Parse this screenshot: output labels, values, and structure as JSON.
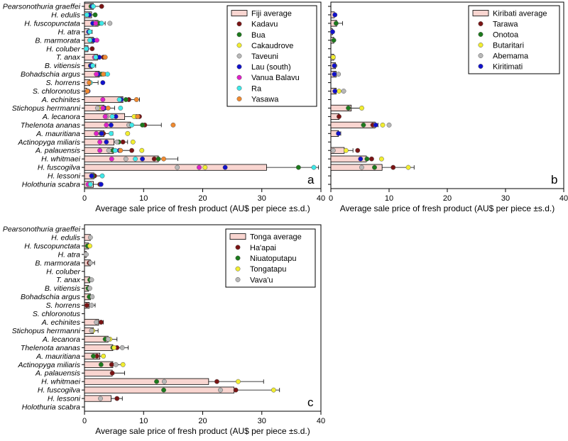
{
  "chart_data": [
    {
      "type": "bar",
      "orientation": "horizontal",
      "panel_label": "a",
      "categories": [
        "Pearsonothuria graeffei",
        "H. edulis",
        "H. fuscopunctata",
        "H. atra",
        "B. marmorata",
        "H. coluber",
        "T. anax",
        "B. vitiensis",
        "Bohadschia argus",
        "S. horrens",
        "S. chloronotus",
        "A. echinites",
        "Stichopus herrmanni",
        "A. lecanora",
        "Thelenota ananas",
        "A. mauritiana",
        "Actinopyga miliaris",
        "A. palauensis",
        "H. whitmaei",
        "H. fuscogilva",
        "H. lessoni",
        "Holothuria scabra"
      ],
      "xlabel": "Average sale price of fresh product (AU$ per piece ±s.d.)",
      "xlim": [
        0,
        40
      ],
      "xticks": [
        "0",
        "10",
        "20",
        "30",
        "40"
      ],
      "legend_position": "top-right",
      "average": {
        "name": "Fiji average",
        "color": "#f9d5d0",
        "values": [
          1.5,
          1.2,
          2.3,
          0.8,
          1.5,
          0.6,
          2.2,
          1.3,
          2.5,
          0.9,
          0.4,
          6.5,
          3.3,
          6.8,
          7.8,
          3.3,
          5.0,
          4.9,
          12.5,
          30.8,
          1.6,
          1.5
        ],
        "sd": [
          1.3,
          0.8,
          1.2,
          0.5,
          0.6,
          0,
          1.4,
          0.6,
          1.0,
          1.4,
          0,
          2.8,
          1.8,
          2.4,
          5.2,
          1.5,
          2.3,
          2.9,
          3.3,
          8.8,
          1.6,
          1.1
        ]
      },
      "series": [
        {
          "name": "Kadavu",
          "color": "#7a1414",
          "values": [
            2.9,
            null,
            2.0,
            null,
            1.4,
            1.3,
            3.2,
            1.3,
            2.6,
            null,
            0.5,
            7.5,
            3.4,
            9.3,
            10.2,
            3.2,
            6.5,
            8.0,
            11.8,
            null,
            1.7,
            2.6
          ]
        },
        {
          "name": "Bua",
          "color": "#1c7a1c",
          "values": [
            1.1,
            1.8,
            2.5,
            null,
            1.2,
            null,
            2.2,
            1.0,
            2.9,
            null,
            null,
            7.0,
            3.2,
            8.8,
            9.8,
            2.8,
            5.8,
            4.8,
            12.5,
            36.2,
            1.4,
            null
          ]
        },
        {
          "name": "Cakaudrove",
          "color": "#f2ee30",
          "values": [
            null,
            null,
            null,
            null,
            null,
            null,
            null,
            null,
            null,
            null,
            null,
            null,
            2.5,
            8.4,
            null,
            7.3,
            8.2,
            9.7,
            null,
            20.4,
            null,
            null
          ]
        },
        {
          "name": "Taveuni",
          "color": "#b8b8b8",
          "values": [
            null,
            null,
            4.3,
            null,
            null,
            null,
            null,
            null,
            null,
            null,
            null,
            null,
            2.2,
            3.8,
            7.5,
            null,
            5.5,
            4.1,
            7.0,
            15.7,
            null,
            null
          ]
        },
        {
          "name": "Lau (south)",
          "color": "#1111cc",
          "values": [
            1.3,
            0.8,
            1.4,
            0.7,
            1.6,
            0.4,
            2.5,
            1.1,
            2.3,
            3.1,
            0.6,
            6.2,
            3.4,
            5.3,
            4.5,
            2.9,
            3.7,
            5.9,
            9.8,
            23.8,
            1.2,
            2.8
          ]
        },
        {
          "name": "Vanua Balavu",
          "color": "#e020c8",
          "values": [
            null,
            null,
            1.9,
            null,
            2.1,
            null,
            1.7,
            null,
            2.0,
            null,
            null,
            3.1,
            3.1,
            3.5,
            3.7,
            2.0,
            2.6,
            2.6,
            4.6,
            19.4,
            null,
            0.6
          ]
        },
        {
          "name": "Ra",
          "color": "#3ee8e8",
          "values": [
            1.5,
            0.4,
            2.9,
            0.9,
            0.9,
            0.3,
            1.9,
            1.4,
            3.9,
            1.0,
            null,
            5.9,
            6.1,
            4.7,
            8.0,
            4.5,
            null,
            5.2,
            8.6,
            38.8,
            3.0,
            1.0
          ]
        },
        {
          "name": "Yasawa",
          "color": "#f08a30",
          "values": [
            null,
            null,
            null,
            null,
            null,
            null,
            3.5,
            null,
            3.2,
            0.8,
            0.5,
            8.8,
            4.0,
            9.0,
            15.0,
            null,
            null,
            6.1,
            13.4,
            null,
            null,
            null
          ]
        }
      ]
    },
    {
      "type": "bar",
      "orientation": "horizontal",
      "panel_label": "b",
      "categories": [
        "Pearsonothuria graeffei",
        "H. edulis",
        "H. fuscopunctata",
        "H. atra",
        "B. marmorata",
        "H. coluber",
        "T. anax",
        "B. vitiensis",
        "Bohadschia argus",
        "S. horrens",
        "S. chloronotus",
        "A. echinites",
        "Stichopus herrmanni",
        "A. lecanora",
        "Thelenota ananas",
        "A. mauritiana",
        "Actinopyga miliaris",
        "A. palauensis",
        "H. whitmaei",
        "H. fuscogilva",
        "H. lessoni",
        "Holothuria scabra"
      ],
      "xlabel": "Average sale price of fresh product (AU$ per piece ±s.d.)",
      "xlim": [
        0,
        40
      ],
      "xticks": [
        "0",
        "10",
        "20",
        "30",
        "40"
      ],
      "legend_position": "top-right",
      "average": {
        "name": "Kiribati average",
        "color": "#f9d5d0",
        "values": [
          null,
          0.6,
          1.0,
          0.3,
          0.5,
          null,
          0.5,
          0.8,
          0.9,
          null,
          0.9,
          null,
          3.5,
          1.4,
          7.6,
          1.3,
          null,
          2.3,
          6.1,
          8.8,
          null,
          null
        ],
        "sd": [
          null,
          0.2,
          1.0,
          0,
          0,
          null,
          0.2,
          0,
          0.4,
          null,
          0,
          null,
          2.0,
          0,
          0.5,
          0.4,
          null,
          1.5,
          0.9,
          5.5,
          null,
          null
        ]
      },
      "series": [
        {
          "name": "Tarawa",
          "color": "#7a1414",
          "values": [
            null,
            null,
            null,
            null,
            null,
            null,
            null,
            null,
            null,
            null,
            null,
            null,
            null,
            1.4,
            7.2,
            null,
            null,
            4.6,
            7.0,
            10.7,
            null,
            null
          ]
        },
        {
          "name": "Onotoa",
          "color": "#1c7a1c",
          "values": [
            null,
            null,
            0.9,
            null,
            0.5,
            null,
            null,
            null,
            null,
            null,
            null,
            null,
            3.0,
            null,
            5.6,
            null,
            null,
            null,
            6.2,
            7.5,
            null,
            null
          ]
        },
        {
          "name": "Butaritari",
          "color": "#f2ee30",
          "values": [
            null,
            null,
            null,
            null,
            null,
            null,
            0.4,
            0.7,
            null,
            null,
            1.4,
            null,
            5.3,
            null,
            8.9,
            null,
            null,
            2.6,
            8.7,
            13.3,
            null,
            null
          ]
        },
        {
          "name": "Abemama",
          "color": "#b8b8b8",
          "values": [
            null,
            null,
            null,
            null,
            null,
            null,
            null,
            null,
            1.3,
            null,
            2.2,
            null,
            null,
            null,
            10.0,
            null,
            null,
            0.4,
            null,
            5.3,
            null,
            null
          ]
        },
        {
          "name": "Kiritimati",
          "color": "#1111cc",
          "values": [
            null,
            0.7,
            null,
            0.3,
            null,
            null,
            null,
            0.6,
            0.6,
            null,
            0.7,
            null,
            null,
            null,
            7.7,
            1.3,
            null,
            null,
            5.1,
            null,
            null,
            null
          ]
        }
      ]
    },
    {
      "type": "bar",
      "orientation": "horizontal",
      "panel_label": "c",
      "categories": [
        "Pearsonothuria graeffei",
        "H. edulis",
        "H. fuscopunctata",
        "H. atra",
        "B. marmorata",
        "H. coluber",
        "T. anax",
        "B. vitiensis",
        "Bohadschia argus",
        "S. horrens",
        "S. chloronotus",
        "A. echinites",
        "Stichopus herrmanni",
        "A. lecanora",
        "Thelenota ananas",
        "A. mauritiana",
        "Actinopyga miliaris",
        "A. palauensis",
        "H. whitmaei",
        "H. fuscogilva",
        "H. lessoni",
        "Holothuria scabra"
      ],
      "xlabel": "Average sale price of fresh product (AU$ per piece ±s.d.)",
      "xlim": [
        0,
        40
      ],
      "xticks": [
        "0",
        "10",
        "20",
        "30",
        "40"
      ],
      "legend_position": "top-right",
      "average": {
        "name": "Tonga average",
        "color": "#f9d5d0",
        "values": [
          null,
          1.0,
          0.7,
          0.3,
          1.0,
          null,
          0.9,
          0.7,
          1.0,
          0.8,
          null,
          2.4,
          1.5,
          4.0,
          4.8,
          2.6,
          4.8,
          4.7,
          21.0,
          25.3,
          4.5,
          null
        ],
        "sd": [
          null,
          0,
          0,
          0,
          0.7,
          null,
          0.4,
          0.3,
          0.5,
          1.0,
          null,
          0.8,
          0.8,
          1.5,
          2.6,
          0.8,
          1.9,
          2.1,
          9.3,
          7.7,
          1.9,
          null
        ]
      },
      "series": [
        {
          "name": "Ha'apai",
          "color": "#7a1414",
          "values": [
            null,
            null,
            null,
            null,
            0.8,
            null,
            null,
            null,
            null,
            0.4,
            null,
            2.8,
            null,
            null,
            5.5,
            2.1,
            4.6,
            4.7,
            22.4,
            25.6,
            5.5,
            null
          ]
        },
        {
          "name": "Niuatoputapu",
          "color": "#1c7a1c",
          "values": [
            null,
            null,
            0.5,
            null,
            null,
            null,
            0.9,
            0.6,
            0.8,
            null,
            null,
            null,
            null,
            3.5,
            4.8,
            1.5,
            2.8,
            null,
            12.2,
            13.4,
            null,
            null
          ]
        },
        {
          "name": "Tongatapu",
          "color": "#f2ee30",
          "values": [
            null,
            null,
            0.9,
            null,
            null,
            null,
            null,
            null,
            null,
            null,
            null,
            null,
            1.4,
            4.3,
            5.0,
            3.2,
            6.5,
            null,
            26.0,
            32.0,
            null,
            null
          ]
        },
        {
          "name": "Vava'u",
          "color": "#b8b8b8",
          "values": [
            null,
            1.0,
            null,
            0.3,
            1.0,
            null,
            1.2,
            0.9,
            1.3,
            1.2,
            null,
            2.0,
            1.2,
            4.0,
            6.4,
            null,
            5.3,
            null,
            13.5,
            23.0,
            2.7,
            null
          ]
        }
      ]
    }
  ]
}
